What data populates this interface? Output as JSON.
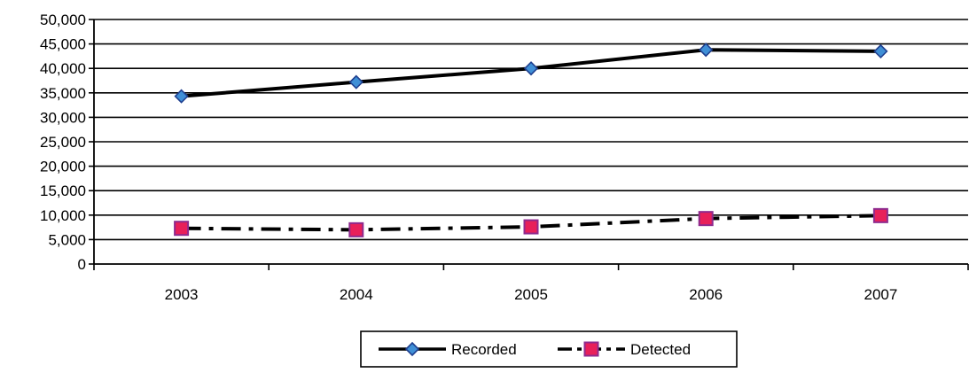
{
  "chart_data": {
    "type": "line",
    "categories": [
      "2003",
      "2004",
      "2005",
      "2006",
      "2007"
    ],
    "y_ticks": [
      "0",
      "5,000",
      "10,000",
      "15,000",
      "20,000",
      "25,000",
      "30,000",
      "35,000",
      "40,000",
      "45,000",
      "50,000"
    ],
    "ylim": [
      0,
      50000
    ],
    "y_step": 5000,
    "grid": "horizontal",
    "legend_position": "bottom",
    "series": [
      {
        "name": "Recorded",
        "values": [
          34300,
          37200,
          40000,
          43800,
          43500
        ],
        "marker": "diamond",
        "line_style": "solid",
        "marker_fill": "#3f8fd6",
        "marker_stroke": "#1f3f8f",
        "line_color": "#000000"
      },
      {
        "name": "Detected",
        "values": [
          7300,
          7000,
          7600,
          9300,
          9900
        ],
        "marker": "square",
        "line_style": "dash-dot",
        "marker_fill": "#e8205a",
        "marker_stroke": "#8e2a8e",
        "line_color": "#000000"
      }
    ]
  }
}
